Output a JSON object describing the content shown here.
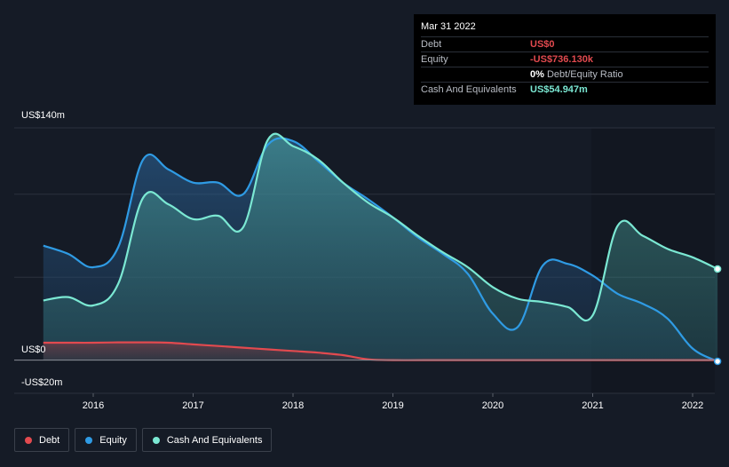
{
  "tooltip": {
    "date": "Mar 31 2022",
    "rows": [
      {
        "label": "Debt",
        "value": "US$0",
        "color": "#e24a4f"
      },
      {
        "label": "Equity",
        "value": "-US$736.130k",
        "color": "#e24a4f"
      },
      {
        "label": "",
        "value": "0%",
        "suffix": "Debt/Equity Ratio",
        "color": "#ffffff"
      },
      {
        "label": "Cash And Equivalents",
        "value": "US$54.947m",
        "color": "#7be8d3"
      }
    ]
  },
  "y_axis": {
    "top_label": "US$140m",
    "zero_label": "US$0",
    "bottom_label": "-US$20m"
  },
  "legend": [
    {
      "label": "Debt",
      "color": "#e24a4f"
    },
    {
      "label": "Equity",
      "color": "#2f9be4"
    },
    {
      "label": "Cash And Equivalents",
      "color": "#7be8d3"
    }
  ],
  "chart_data": {
    "type": "area",
    "ylim": [
      -20,
      140
    ],
    "x_ticks": [
      "2016",
      "2017",
      "2018",
      "2019",
      "2020",
      "2021",
      "2022"
    ],
    "series": [
      {
        "name": "Debt",
        "color": "#e24a4f",
        "points": [
          [
            2015.5,
            10.5
          ],
          [
            2015.75,
            10.5
          ],
          [
            2016.0,
            10.5
          ],
          [
            2016.25,
            10.7
          ],
          [
            2016.5,
            10.7
          ],
          [
            2016.75,
            10.5
          ],
          [
            2017.0,
            9.5
          ],
          [
            2017.25,
            8.5
          ],
          [
            2017.5,
            7.5
          ],
          [
            2017.75,
            6.5
          ],
          [
            2018.0,
            5.5
          ],
          [
            2018.25,
            4.5
          ],
          [
            2018.5,
            3.0
          ],
          [
            2018.75,
            0.5
          ],
          [
            2019.0,
            0
          ],
          [
            2019.5,
            0
          ],
          [
            2020.0,
            0
          ],
          [
            2020.5,
            0
          ],
          [
            2021.0,
            0
          ],
          [
            2021.5,
            0
          ],
          [
            2022.0,
            0
          ],
          [
            2022.25,
            0
          ]
        ]
      },
      {
        "name": "Equity",
        "color": "#2f9be4",
        "points": [
          [
            2015.5,
            69
          ],
          [
            2015.75,
            64
          ],
          [
            2016.0,
            56
          ],
          [
            2016.25,
            68
          ],
          [
            2016.5,
            121
          ],
          [
            2016.75,
            115
          ],
          [
            2017.0,
            107
          ],
          [
            2017.25,
            107
          ],
          [
            2017.5,
            100
          ],
          [
            2017.75,
            130
          ],
          [
            2018.0,
            132
          ],
          [
            2018.25,
            120
          ],
          [
            2018.5,
            107
          ],
          [
            2018.75,
            97
          ],
          [
            2019.0,
            86
          ],
          [
            2019.25,
            74
          ],
          [
            2019.5,
            64
          ],
          [
            2019.75,
            52
          ],
          [
            2020.0,
            28
          ],
          [
            2020.25,
            20
          ],
          [
            2020.5,
            57
          ],
          [
            2020.75,
            58
          ],
          [
            2021.0,
            51
          ],
          [
            2021.25,
            40
          ],
          [
            2021.5,
            34
          ],
          [
            2021.75,
            25
          ],
          [
            2022.0,
            7
          ],
          [
            2022.25,
            -0.736
          ]
        ]
      },
      {
        "name": "Cash And Equivalents",
        "color": "#7be8d3",
        "points": [
          [
            2015.5,
            36
          ],
          [
            2015.75,
            38
          ],
          [
            2016.0,
            33
          ],
          [
            2016.25,
            46
          ],
          [
            2016.5,
            98
          ],
          [
            2016.75,
            94
          ],
          [
            2017.0,
            85
          ],
          [
            2017.25,
            87
          ],
          [
            2017.5,
            80
          ],
          [
            2017.75,
            133
          ],
          [
            2018.0,
            129
          ],
          [
            2018.25,
            121
          ],
          [
            2018.5,
            107
          ],
          [
            2018.75,
            95
          ],
          [
            2019.0,
            86
          ],
          [
            2019.25,
            75
          ],
          [
            2019.5,
            65
          ],
          [
            2019.75,
            56
          ],
          [
            2020.0,
            44
          ],
          [
            2020.25,
            37
          ],
          [
            2020.5,
            35
          ],
          [
            2020.75,
            32
          ],
          [
            2021.0,
            27
          ],
          [
            2021.25,
            81
          ],
          [
            2021.5,
            75
          ],
          [
            2021.75,
            67
          ],
          [
            2022.0,
            62
          ],
          [
            2022.25,
            54.947
          ]
        ]
      }
    ]
  }
}
